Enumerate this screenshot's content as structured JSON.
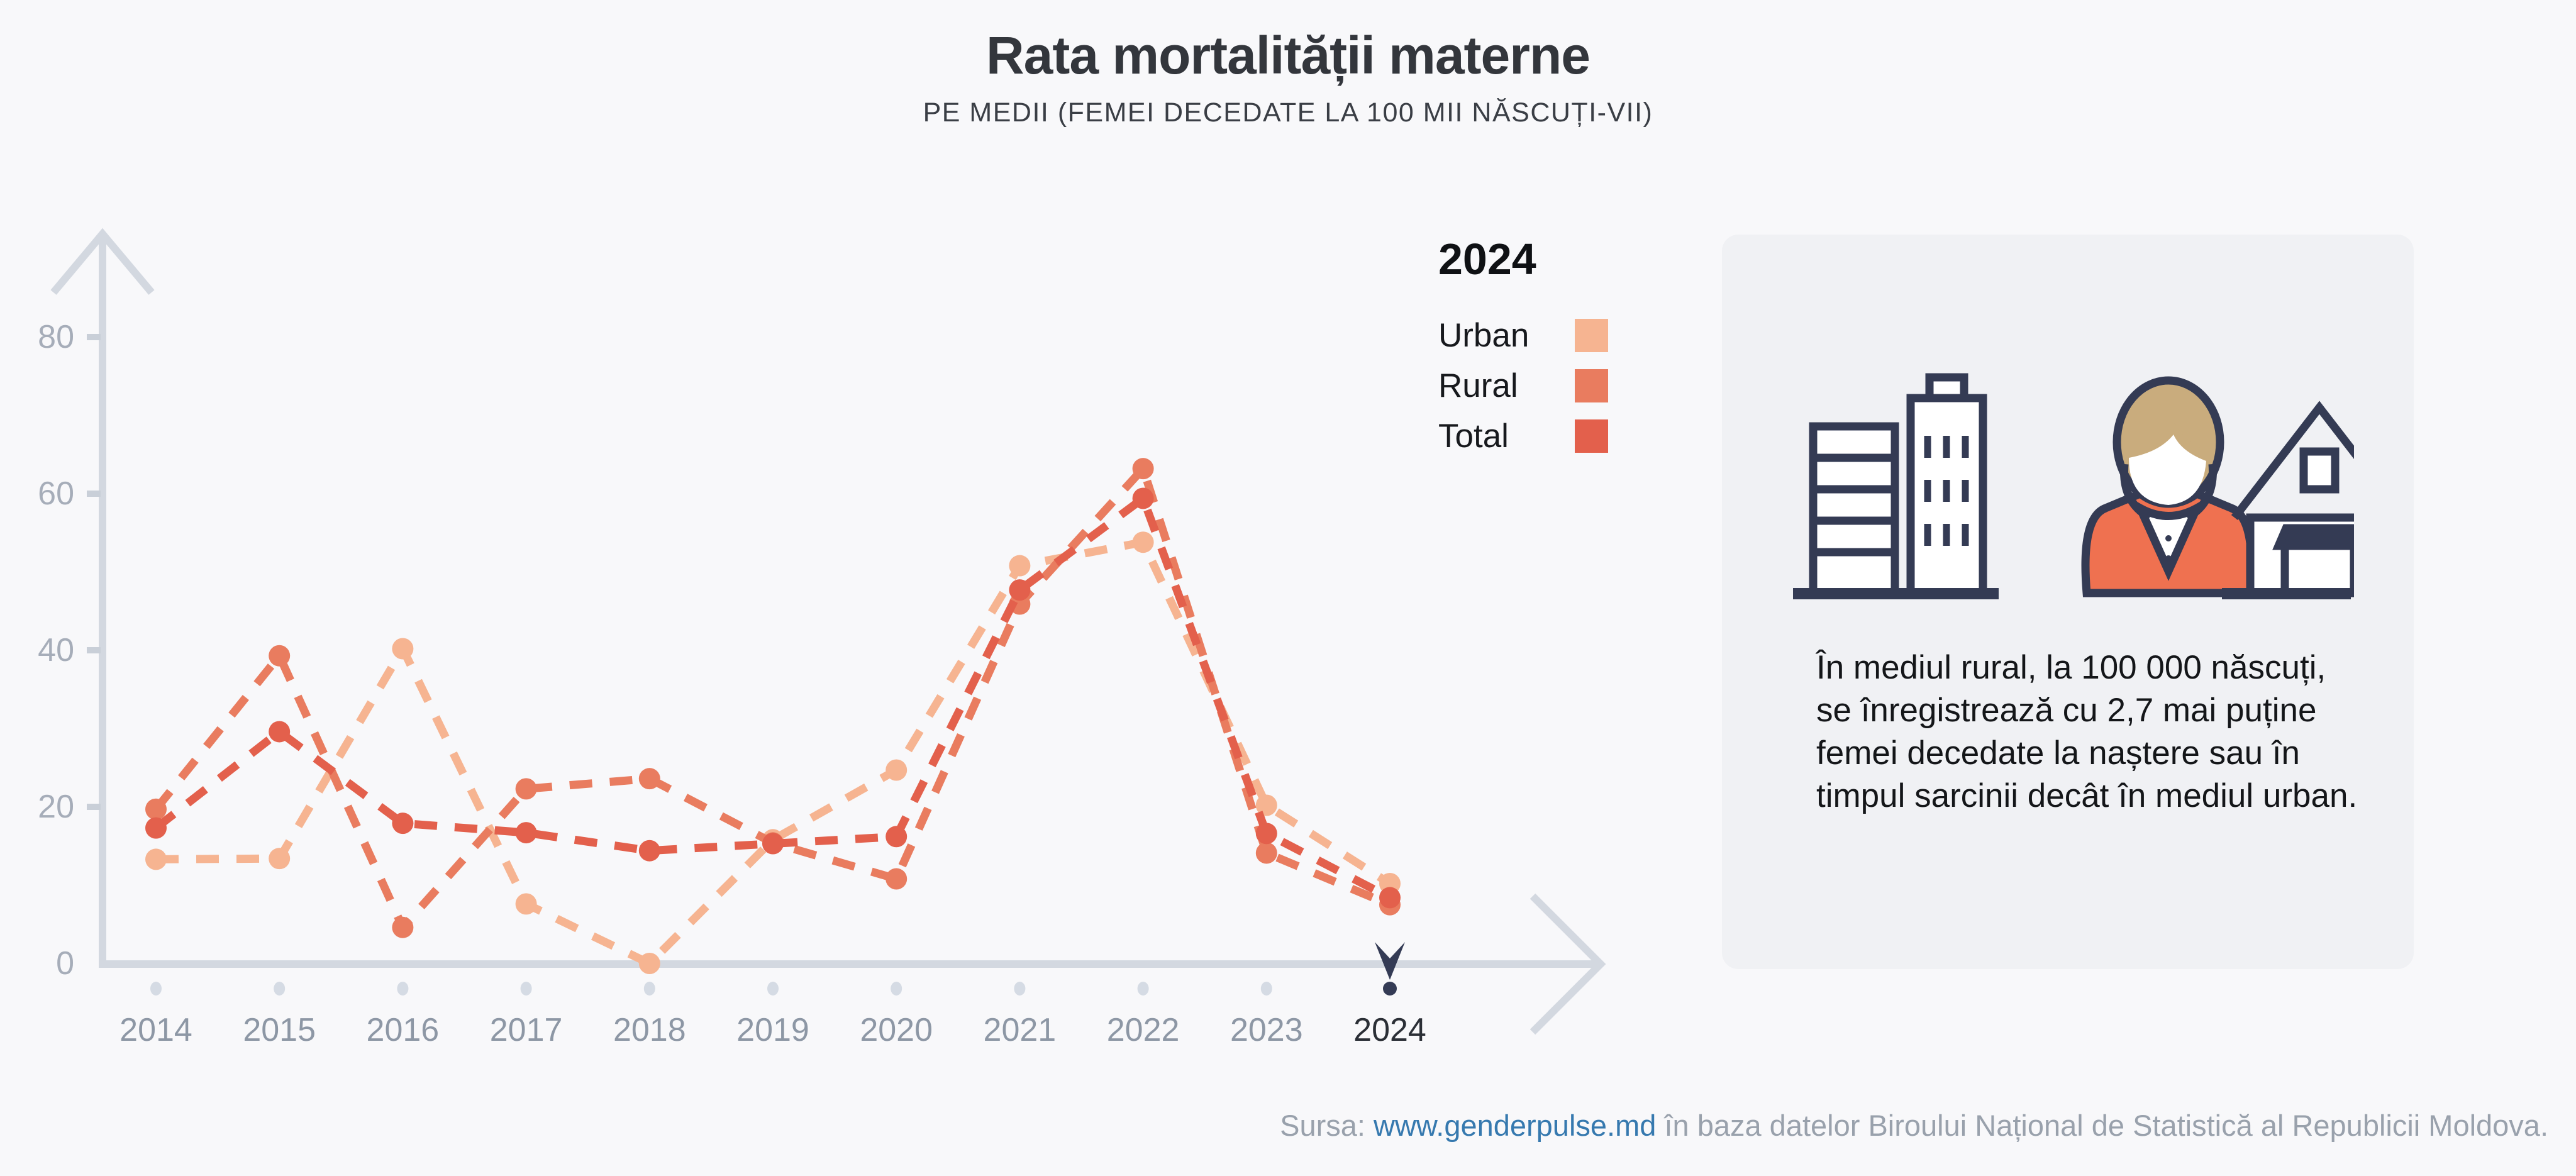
{
  "header": {
    "title": "Rata mortalității materne",
    "subtitle": "PE MEDII (FEMEI DECEDATE LA 100 MII NĂSCUȚI-VII)"
  },
  "legend": {
    "year": "2024",
    "items": [
      {
        "label": "Urban",
        "color": "#F6B491"
      },
      {
        "label": "Rural",
        "color": "#E97C5F"
      },
      {
        "label": "Total",
        "color": "#E3604C"
      }
    ]
  },
  "chart_data": {
    "type": "line",
    "title": "Rata mortalității materne",
    "subtitle": "PE MEDII (FEMEI DECEDATE LA 100 MII NĂSCUȚI-VII)",
    "x": [
      2014,
      2015,
      2016,
      2017,
      2018,
      2019,
      2020,
      2021,
      2022,
      2023,
      2024
    ],
    "series": [
      {
        "name": "Urban",
        "color": "#F6B491",
        "values": [
          13.3,
          13.4,
          40.2,
          7.6,
          0,
          15.8,
          24.7,
          50.8,
          53.8,
          20.2,
          10.2
        ]
      },
      {
        "name": "Rural",
        "color": "#E97C5F",
        "values": [
          19.7,
          39.3,
          4.6,
          22.3,
          23.6,
          15.4,
          10.8,
          45.9,
          63.2,
          14.1,
          7.5
        ]
      },
      {
        "name": "Total",
        "color": "#E3604C",
        "values": [
          17.3,
          29.6,
          17.9,
          16.7,
          14.4,
          15.3,
          16.2,
          47.7,
          59.4,
          16.6,
          8.4
        ]
      }
    ],
    "ylim": [
      0,
      88
    ],
    "yticks": [
      0,
      20,
      40,
      60,
      80
    ],
    "selected_year": 2024,
    "line_style": "dashed",
    "grid": false,
    "legend_position": "top-right",
    "axis_color": "#D3D8E0",
    "tick_label_color": "#A6ADB9",
    "year_label_color": "#8D97A5",
    "selected_year_color": "#2B2F36",
    "marker_color": "#343B55",
    "year_dot_color": "#D5DBE4"
  },
  "info_panel": {
    "text": "În mediul rural, la 100 000 născuți, se înregistrează cu 2,7 mai puține femei decedate la naștere sau în timpul sarcinii decât în mediul urban.",
    "icons": [
      "city-buildings-icon",
      "woman-icon",
      "rural-houses-icon"
    ]
  },
  "footer": {
    "prefix": "Sursa: ",
    "link": "www.genderpulse.md",
    "suffix": " în baza datelor Biroului Național de Statistică al Republicii Moldova."
  }
}
